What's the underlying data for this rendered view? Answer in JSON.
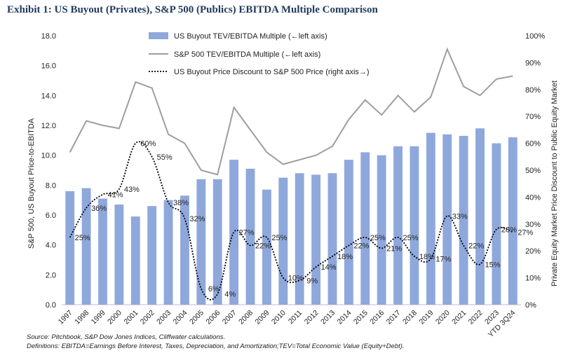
{
  "title": "Exhibit 1: US Buyout (Privates), S&P 500 (Publics) EBITDA Multiple Comparison",
  "footnotes": {
    "source": "Source: Pitchbook, S&P Dow Jones Indices, Cliffwater calculations.",
    "definitions": "Definitions: EBITDA=Earnings Before Interest, Taxes, Depreciation, and Amortization;TEV=Total Economic Value (Equity+Debt)."
  },
  "colors": {
    "bar": "#8fa8dc",
    "line": "#9e9e9e",
    "dotted": "#000000",
    "title": "#1f3a5a"
  },
  "chart_data": {
    "type": "bar",
    "categories": [
      "1997",
      "1998",
      "1999",
      "2000",
      "2001",
      "2002",
      "2003",
      "2004",
      "2005",
      "2006",
      "2007",
      "2008",
      "2009",
      "2010",
      "2011",
      "2012",
      "2013",
      "2014",
      "2015",
      "2016",
      "2017",
      "2018",
      "2019",
      "2020",
      "2021",
      "2022",
      "2023",
      "YTD 3Q24"
    ],
    "left_axis": {
      "label": "S&P 500, US Buyout Price-to-EBITDA",
      "ylim": [
        0,
        18
      ],
      "ticks": [
        "0.0",
        "2.0",
        "4.0",
        "6.0",
        "8.0",
        "10.0",
        "12.0",
        "14.0",
        "16.0",
        "18.0"
      ]
    },
    "right_axis": {
      "label": "Private Equity Market Price Discount to Public Equity Market",
      "ylim": [
        0,
        100
      ],
      "ticks": [
        "0%",
        "10%",
        "20%",
        "30%",
        "40%",
        "50%",
        "60%",
        "70%",
        "80%",
        "90%",
        "100%"
      ]
    },
    "legend_position": "top-center",
    "series": [
      {
        "name": "US Buyout TEV/EBITDA Multiple (←left axis)",
        "type": "bar",
        "axis": "left",
        "values": [
          7.6,
          7.8,
          7.1,
          6.7,
          5.9,
          6.6,
          7.0,
          7.3,
          8.4,
          8.4,
          9.7,
          9.1,
          7.7,
          8.5,
          8.8,
          8.7,
          8.8,
          9.7,
          10.2,
          10.0,
          10.6,
          10.6,
          11.5,
          11.4,
          11.3,
          11.8,
          10.8,
          11.2
        ]
      },
      {
        "name": "S&P 500 TEV/EBITDA Multiple (←left axis)",
        "type": "line",
        "axis": "left",
        "values": [
          10.2,
          12.3,
          12.0,
          11.8,
          14.9,
          14.5,
          11.4,
          10.8,
          9.0,
          8.7,
          13.2,
          11.7,
          10.2,
          9.4,
          9.7,
          10.0,
          10.6,
          12.4,
          13.7,
          12.7,
          14.0,
          12.9,
          13.9,
          17.1,
          14.6,
          14.0,
          15.1,
          15.3
        ]
      },
      {
        "name": "US Buyout Price Discount to S&P 500 Price (right axis→)",
        "type": "line-dotted",
        "axis": "right",
        "values": [
          25,
          36,
          41,
          43,
          60,
          55,
          38,
          32,
          6,
          4,
          27,
          22,
          25,
          10,
          9,
          14,
          18,
          22,
          25,
          21,
          25,
          18,
          17,
          33,
          22,
          15,
          28,
          27
        ],
        "labels": [
          "25%",
          "36%",
          "41%",
          "43%",
          "60%",
          "55%",
          "38%",
          "32%",
          "6%",
          "4%",
          "27%",
          "22%",
          "25%",
          "10%",
          "9%",
          "14%",
          "18%",
          "22%",
          "25%",
          "21%",
          "25%",
          "18%",
          "17%",
          "33%",
          "22%",
          "15%",
          "28%",
          "27%"
        ]
      }
    ]
  }
}
